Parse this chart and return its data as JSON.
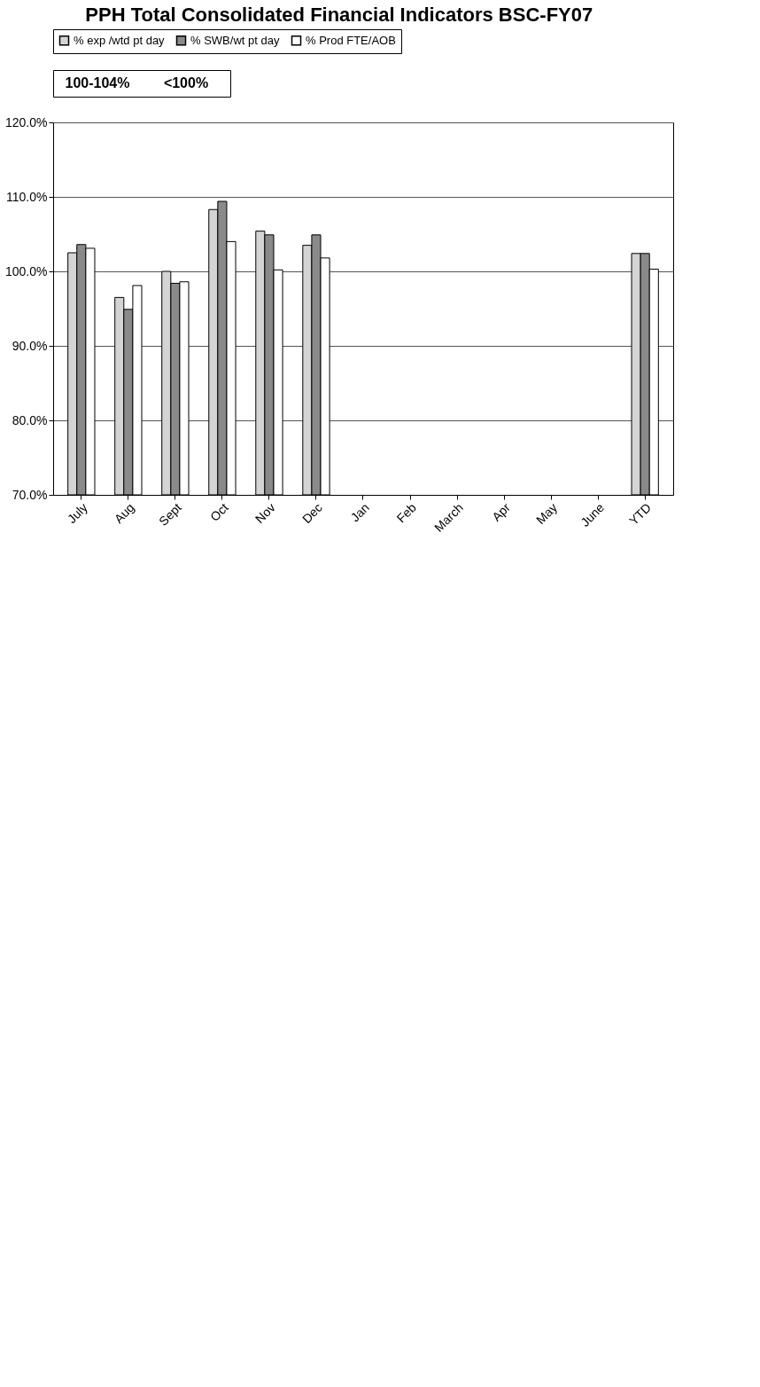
{
  "chart_data": {
    "type": "bar",
    "title": "PPH Total Consolidated Financial Indicators BSC-FY07",
    "categories": [
      "July",
      "Aug",
      "Sept",
      "Oct",
      "Nov",
      "Dec",
      "Jan",
      "Feb",
      "March",
      "Apr",
      "May",
      "June",
      "YTD"
    ],
    "series": [
      {
        "name": "% exp /wtd pt day",
        "color": "#d4d4d4",
        "values": [
          102.5,
          96.5,
          100.0,
          108.3,
          105.4,
          103.5,
          null,
          null,
          null,
          null,
          null,
          null,
          102.4
        ]
      },
      {
        "name": "% SWB/wt pt day",
        "color": "#8a8a8a",
        "values": [
          103.6,
          94.9,
          98.4,
          109.4,
          104.9,
          104.9,
          null,
          null,
          null,
          null,
          null,
          null,
          102.4
        ]
      },
      {
        "name": "% Prod FTE/AOB",
        "color": "#ffffff",
        "values": [
          103.1,
          98.1,
          98.6,
          104.0,
          100.2,
          101.8,
          null,
          null,
          null,
          null,
          null,
          null,
          100.3
        ]
      }
    ],
    "ylim": [
      70,
      120
    ],
    "yticks": [
      {
        "value": 70,
        "label": "70.0%"
      },
      {
        "value": 80,
        "label": "80.0%"
      },
      {
        "value": 90,
        "label": "90.0%"
      },
      {
        "value": 100,
        "label": "100.0%"
      },
      {
        "value": 110,
        "label": "110.0%"
      },
      {
        "value": 120,
        "label": "120.0%"
      }
    ],
    "grid": "y",
    "legend": "top",
    "annotations": [
      "100-104%",
      "<100%"
    ]
  }
}
